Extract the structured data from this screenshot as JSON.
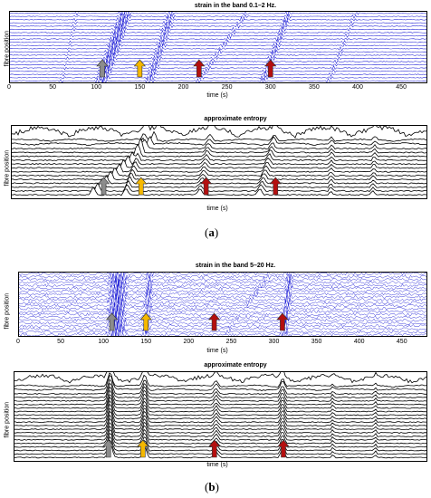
{
  "colors": {
    "strain": "#1f1fd6",
    "entropy": "#000000",
    "arrow_gray": "#8c8c8c",
    "arrow_yellow": "#f5b800",
    "arrow_red": "#b40f0f"
  },
  "figure_a": {
    "caption": {
      "open": "(",
      "letter": "a",
      "close": ")"
    },
    "strain": {
      "title": "strain in the band 0.1–2 Hz.",
      "ylabel": "fibre position",
      "xlabel": "time (s)"
    },
    "entropy": {
      "title": "approximate entropy",
      "ylabel": "fibre position",
      "xlabel": "time (s)"
    }
  },
  "figure_b": {
    "caption": {
      "open": "(",
      "letter": "b",
      "close": ")"
    },
    "strain": {
      "title": "strain in the band 5–20 Hz.",
      "ylabel": "fibre position",
      "xlabel": "time (s)"
    },
    "entropy": {
      "title": "approximate entropy",
      "ylabel": "fibre position",
      "xlabel": "time (s)"
    }
  },
  "chart_data": [
    {
      "type": "line",
      "title": "strain in the band 0.1–2 Hz.",
      "xlabel": "time (s)",
      "ylabel": "fibre position",
      "xlim": [
        0,
        480
      ],
      "xticks": [
        0,
        50,
        100,
        150,
        200,
        250,
        300,
        350,
        400,
        450
      ],
      "traces": 22,
      "arrows": [
        {
          "t": 107,
          "color": "gray"
        },
        {
          "t": 150,
          "color": "yellow"
        },
        {
          "t": 218,
          "color": "red"
        },
        {
          "t": 300,
          "color": "red"
        }
      ]
    },
    {
      "type": "line",
      "title": "approximate entropy",
      "xlabel": "time (s)",
      "ylabel": "fibre position",
      "xlim": [
        0,
        480
      ],
      "traces": 16,
      "arrows": [
        {
          "t": 107,
          "color": "gray"
        },
        {
          "t": 150,
          "color": "yellow"
        },
        {
          "t": 225,
          "color": "red"
        },
        {
          "t": 305,
          "color": "red"
        }
      ]
    },
    {
      "type": "line",
      "title": "strain in the band 5–20 Hz.",
      "xlabel": "time (s)",
      "ylabel": "fibre position",
      "xlim": [
        0,
        480
      ],
      "xticks": [
        0,
        50,
        100,
        150,
        200,
        250,
        300,
        350,
        400,
        450
      ],
      "traces": 22,
      "arrows": [
        {
          "t": 110,
          "color": "gray"
        },
        {
          "t": 150,
          "color": "yellow"
        },
        {
          "t": 230,
          "color": "red"
        },
        {
          "t": 310,
          "color": "red"
        }
      ]
    },
    {
      "type": "line",
      "title": "approximate entropy",
      "xlabel": "time (s)",
      "ylabel": "fibre position",
      "xlim": [
        0,
        480
      ],
      "traces": 22,
      "arrows": [
        {
          "t": 110,
          "color": "gray"
        },
        {
          "t": 150,
          "color": "yellow"
        },
        {
          "t": 233,
          "color": "red"
        },
        {
          "t": 313,
          "color": "red"
        }
      ]
    }
  ]
}
